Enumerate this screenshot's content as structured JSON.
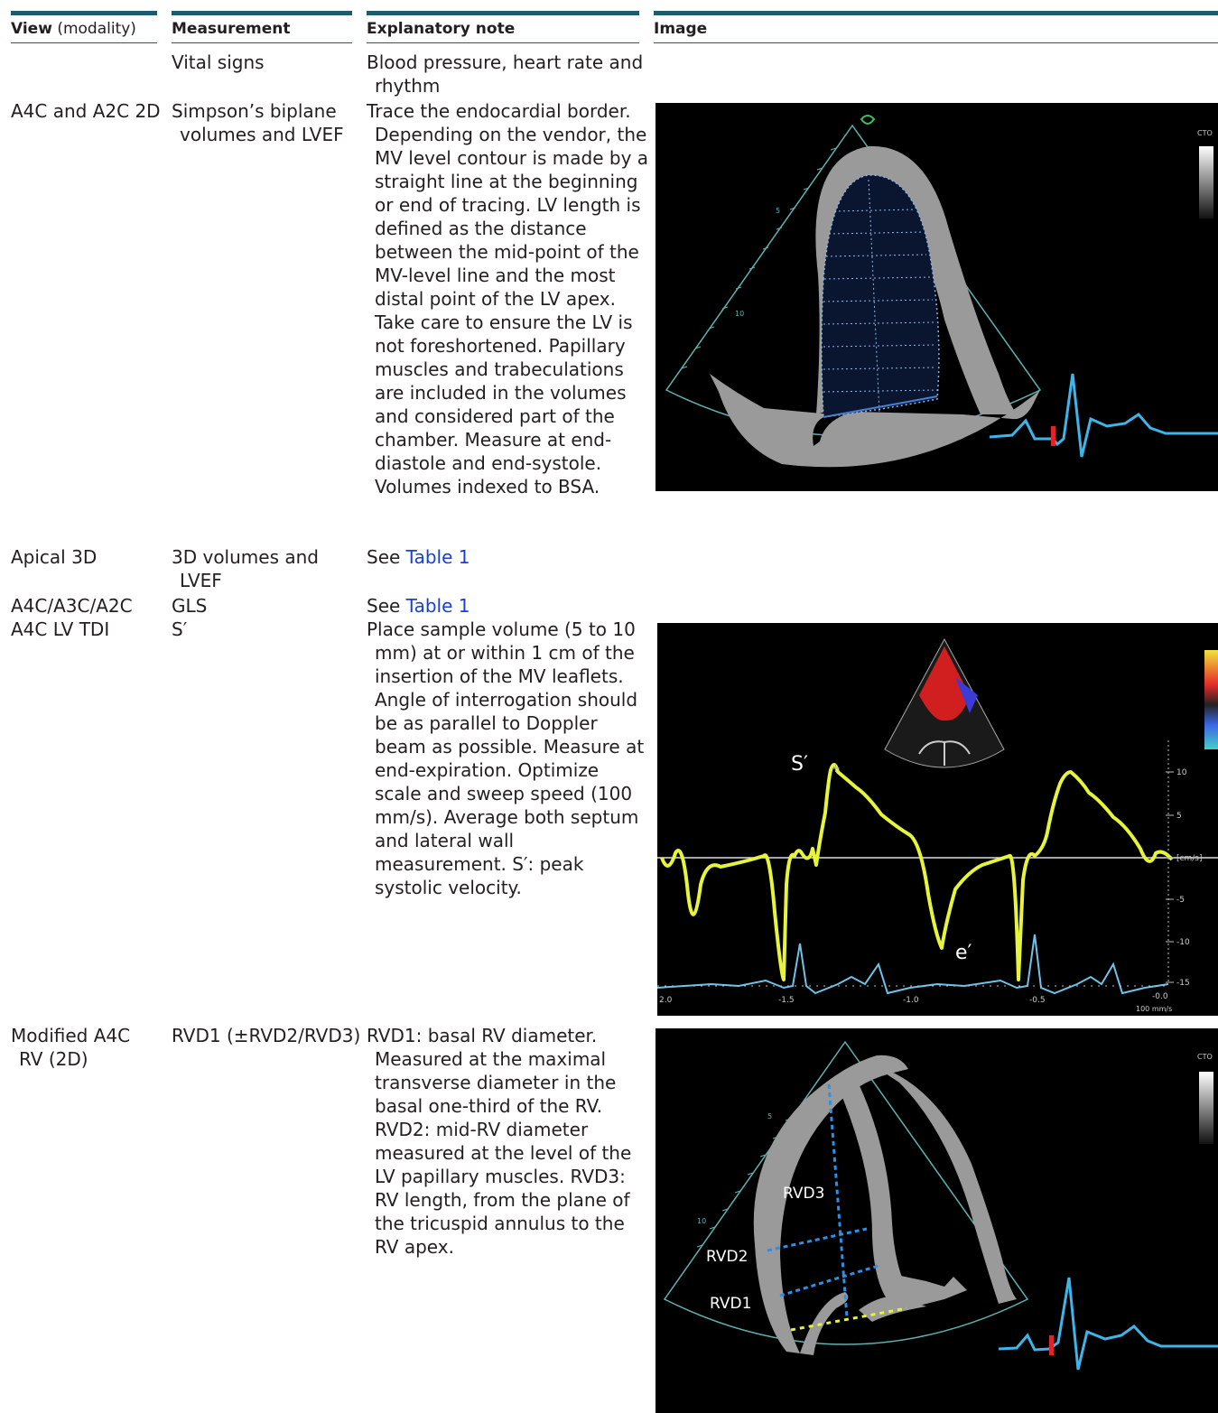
{
  "header": {
    "view_bold": "View",
    "view_rest": "(modality)",
    "measurement": "Measurement",
    "note": "Explanatory note",
    "image": "Image"
  },
  "rows": [
    {
      "view": "",
      "measurement": "Vital signs",
      "note": "Blood pressure, heart rate and rhythm"
    },
    {
      "view": "A4C and A2C 2D",
      "measurement": "Simpson’s biplane volumes and LVEF",
      "note": "Trace the endocardial border. Depending on the vendor, the MV level contour is made by a straight line at the beginning or end of tracing. LV length is defined as the distance between the mid-point of the MV-level line and the most distal point of the LV apex. Take care to ensure the LV is not foreshortened. Papillary muscles and trabeculations are included in the volumes and considered part of the chamber. Measure at end-diastole and end-systole. Volumes indexed to BSA."
    },
    {
      "view": "Apical 3D",
      "measurement": "3D volumes and LVEF",
      "note_prefix": "See ",
      "note_link": "Table 1"
    },
    {
      "view": "A4C/A3C/A2C",
      "measurement": "GLS",
      "note_prefix": "See ",
      "note_link": "Table 1"
    },
    {
      "view": "A4C LV TDI",
      "measurement": "S′",
      "note": "Place sample volume (5 to 10 mm) at or within 1 cm of the insertion of the MV leaflets. Angle of interrogation should be as parallel to Doppler beam as possible. Measure at end-expiration. Optimize scale and sweep speed (100 mm/s). Average both septum and lateral wall measurement. S′: peak systolic velocity."
    },
    {
      "view": "Modified A4C RV (2D)",
      "measurement": "RVD1 (±RVD2/RVD3)",
      "note": "RVD1: basal RV diameter. Measured at the maximal transverse diameter in the basal one-third of the RV. RVD2: mid-RV diameter measured at the level of the LV papillary muscles. RVD3: RV length, from the plane of the tricuspid annulus to the RV apex."
    }
  ],
  "images": {
    "echo1": {
      "ticks": [
        "5",
        "10"
      ],
      "corner": "CTO"
    },
    "tdi": {
      "s_label": "S′",
      "e_label": "e′",
      "scale": [
        "10",
        "5",
        "[cm/s]",
        "-5",
        "-10",
        "-15"
      ],
      "time": [
        "2.0",
        "-1.5",
        "-1.0",
        "-0.5",
        "-0.0"
      ],
      "speed": "100 mm/s"
    },
    "echo2": {
      "labels": [
        "RVD3",
        "RVD2",
        "RVD1"
      ],
      "ticks": [
        "5",
        "10"
      ],
      "corner": "CTO"
    }
  },
  "colors": {
    "rule": "#1c5a6e",
    "link": "#1a3fd1",
    "trace": "#e6f53b",
    "ecg": "#3fb4e8"
  }
}
